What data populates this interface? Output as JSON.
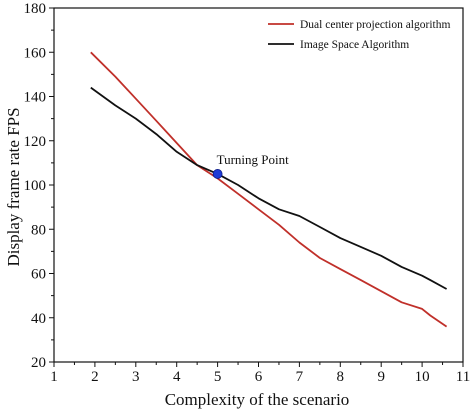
{
  "chart_data": {
    "type": "line",
    "xlabel": "Complexity of the scenario",
    "ylabel": "Display frame rate FPS",
    "xlim": [
      1,
      11
    ],
    "ylim": [
      20,
      180
    ],
    "xticks": [
      1,
      2,
      3,
      4,
      5,
      6,
      7,
      8,
      9,
      10,
      11
    ],
    "yticks": [
      20,
      40,
      60,
      80,
      100,
      120,
      140,
      160,
      180
    ],
    "grid": false,
    "legend_position": "top-right",
    "series": [
      {
        "name": "Dual center projection algorithm",
        "color": "#c0302a",
        "x": [
          1.9,
          2.5,
          3.0,
          3.5,
          4.0,
          4.5,
          5.0,
          5.5,
          6.0,
          6.5,
          7.0,
          7.5,
          8.0,
          8.5,
          9.0,
          9.5,
          10.0,
          10.2,
          10.6
        ],
        "y": [
          160,
          149,
          139,
          129,
          119,
          109,
          103,
          96,
          89,
          82,
          74,
          67,
          62,
          57,
          52,
          47,
          44,
          41,
          36
        ]
      },
      {
        "name": "Image Space Algorithm",
        "color": "#111111",
        "x": [
          1.9,
          2.5,
          3.0,
          3.5,
          4.0,
          4.5,
          5.0,
          5.5,
          6.0,
          6.5,
          7.0,
          7.5,
          8.0,
          8.5,
          9.0,
          9.5,
          10.0,
          10.2,
          10.6
        ],
        "y": [
          144,
          136,
          130,
          123,
          115,
          109,
          105,
          100,
          94,
          89,
          86,
          81,
          76,
          72,
          68,
          63,
          59,
          57,
          53
        ]
      }
    ],
    "annotations": [
      {
        "text": "Turning Point",
        "x": 5.0,
        "y": 105,
        "marker_color": "#1f3bd6"
      }
    ]
  }
}
